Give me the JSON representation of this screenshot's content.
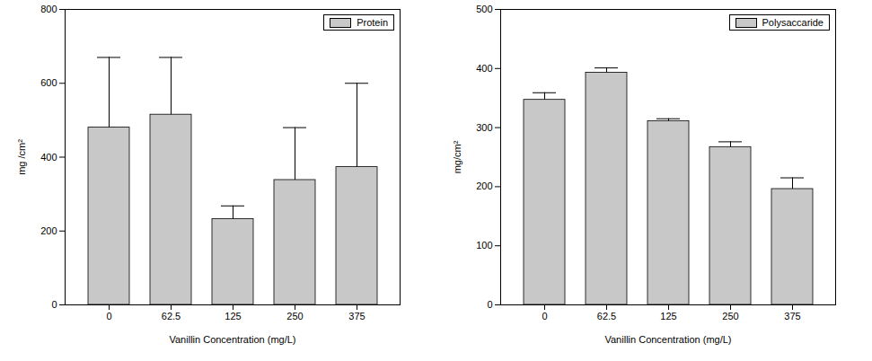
{
  "chart_data": [
    {
      "type": "bar",
      "x_label": "Vanillin Concentration (mg/L)",
      "y_label": "mg /cm²",
      "categories": [
        "0",
        "62.5",
        "125",
        "250",
        "375"
      ],
      "series": [
        {
          "name": "Protein",
          "color": "#c8c8c8",
          "values": [
            480,
            515,
            232,
            338,
            373
          ],
          "error_upper": [
            190,
            155,
            36,
            142,
            227
          ]
        }
      ],
      "ylim": [
        0,
        800
      ],
      "yticks": [
        0,
        200,
        400,
        600,
        800
      ],
      "legend": "top-right",
      "grid": false
    },
    {
      "type": "bar",
      "x_label": "Vanillin Concentration (mg/L)",
      "y_label": "mg/cm²",
      "categories": [
        "0",
        "62.5",
        "125",
        "250",
        "375"
      ],
      "series": [
        {
          "name": "Polysaccaride",
          "color": "#c8c8c8",
          "values": [
            347,
            393,
            311,
            267,
            196
          ],
          "error_upper": [
            12,
            8,
            4,
            9,
            19
          ]
        }
      ],
      "ylim": [
        0,
        500
      ],
      "yticks": [
        0,
        100,
        200,
        300,
        400,
        500
      ],
      "legend": "top-right",
      "grid": false
    }
  ]
}
